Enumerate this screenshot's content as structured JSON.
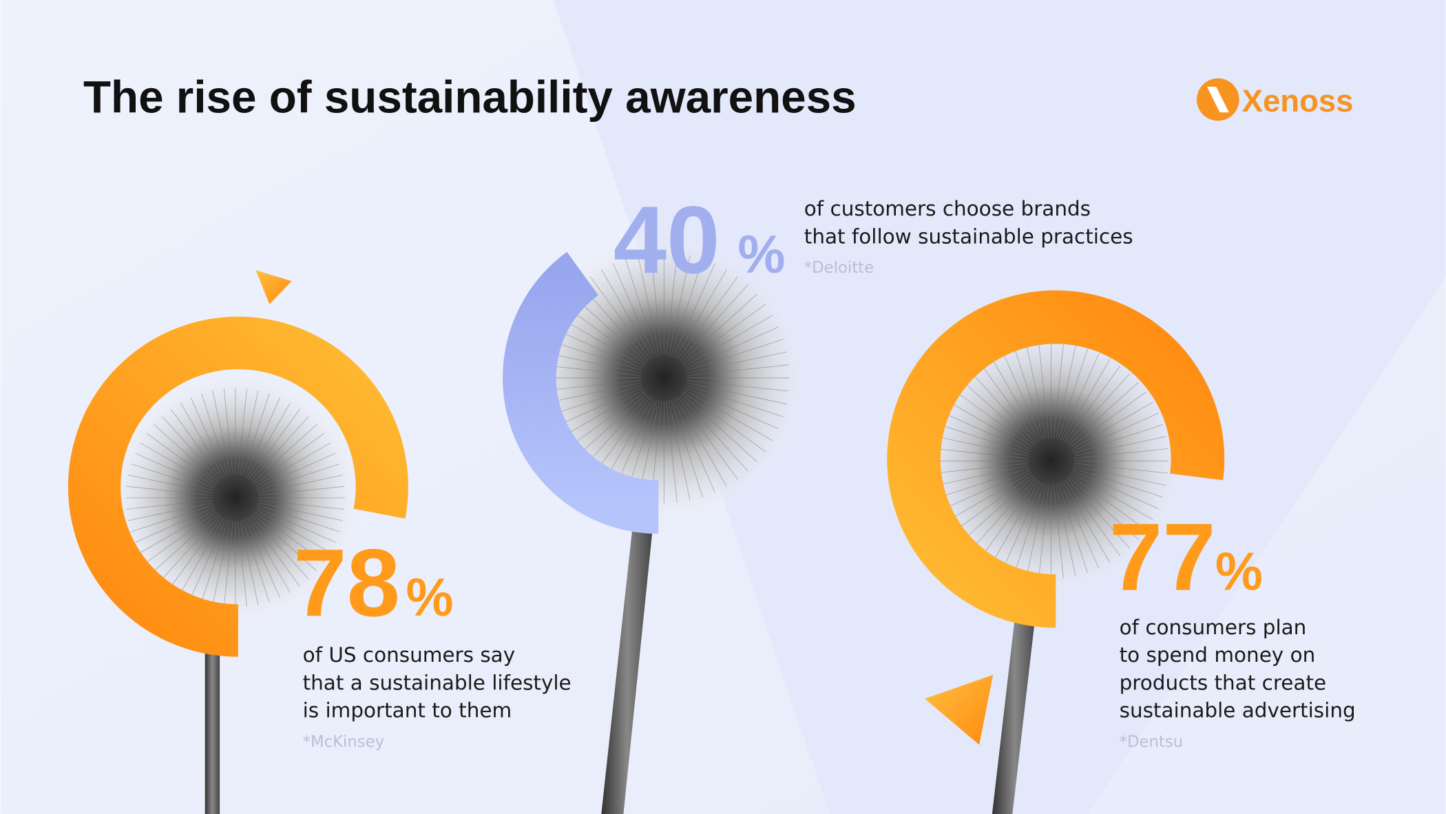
{
  "header": {
    "title": "The rise of sustainability awareness",
    "logo": "Xenoss"
  },
  "stats": [
    {
      "value": 78,
      "unit": "%",
      "description": [
        "of US consumers say",
        "that a sustainable lifestyle",
        "is important to them"
      ],
      "source": "*McKinsey"
    },
    {
      "value": 40,
      "unit": "%",
      "description": [
        "of customers choose brands",
        "that follow sustainable practices"
      ],
      "source": "*Deloitte"
    },
    {
      "value": 77,
      "unit": "%",
      "description": [
        "of consumers plan",
        "to spend money on",
        "products that create",
        "sustainable advertising"
      ],
      "source": "*Dentsu"
    }
  ]
}
